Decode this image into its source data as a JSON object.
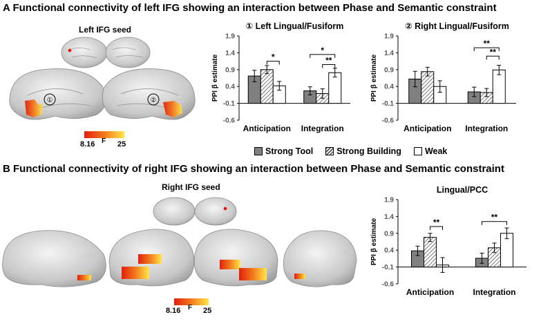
{
  "panel_a": {
    "letter": "A",
    "title": "Functional connectivity of left IFG showing an interaction between Phase and Semantic constraint",
    "seed_label": "Left IFG seed",
    "brain_markers": [
      "①",
      "②"
    ],
    "colorbar": {
      "min": "8.16",
      "stat": "F",
      "max": "25"
    }
  },
  "panel_b": {
    "letter": "B",
    "title": "Functional connectivity of right IFG showing an interaction between Phase and Semantic constraint",
    "seed_label": "Right IFG seed",
    "colorbar": {
      "min": "8.16",
      "stat": "F",
      "max": "25"
    }
  },
  "legend": {
    "items": [
      {
        "label": "Strong Tool",
        "fill": "gray"
      },
      {
        "label": "Strong Building",
        "fill": "hatch"
      },
      {
        "label": "Weak",
        "fill": "white"
      }
    ]
  },
  "colors": {
    "gray": "#808080",
    "hatch_line": "#555555",
    "white": "#ffffff",
    "heat_low": "#e0200f",
    "heat_high": "#ffe64a"
  },
  "chart_data": [
    {
      "id": "A1",
      "type": "bar",
      "title": "① Left Lingual/Fusiform",
      "ylabel": "PPI β estimate",
      "ylim": [
        -0.6,
        1.9
      ],
      "yticks": [
        "1.9",
        "1.4",
        "0.9",
        "0.4",
        "-0.1",
        "-0.6"
      ],
      "categories": [
        "Anticipation",
        "Integration"
      ],
      "series": [
        {
          "name": "Strong Tool",
          "values": [
            0.71,
            0.27
          ],
          "errors": [
            0.17,
            0.12
          ]
        },
        {
          "name": "Strong Building",
          "values": [
            0.9,
            0.19
          ],
          "errors": [
            0.12,
            0.14
          ]
        },
        {
          "name": "Weak",
          "values": [
            0.42,
            0.81
          ],
          "errors": [
            0.13,
            0.13
          ]
        }
      ],
      "significance": [
        {
          "label": "*",
          "from": [
            0,
            1
          ],
          "to": [
            0,
            2
          ],
          "y": 1.15
        },
        {
          "label": "*",
          "from": [
            1,
            0
          ],
          "to": [
            1,
            2
          ],
          "y": 1.35
        },
        {
          "label": "**",
          "from": [
            1,
            1
          ],
          "to": [
            1,
            2
          ],
          "y": 1.05
        }
      ]
    },
    {
      "id": "A2",
      "type": "bar",
      "title": "② Right Lingual/Fusiform",
      "ylabel": "PPI β estimate",
      "ylim": [
        -0.6,
        1.9
      ],
      "yticks": [
        "1.9",
        "1.4",
        "0.9",
        "0.4",
        "-0.1",
        "-0.6"
      ],
      "categories": [
        "Anticipation",
        "Integration"
      ],
      "series": [
        {
          "name": "Strong Tool",
          "values": [
            0.62,
            0.24
          ],
          "errors": [
            0.23,
            0.14
          ]
        },
        {
          "name": "Strong Building",
          "values": [
            0.84,
            0.22
          ],
          "errors": [
            0.13,
            0.12
          ]
        },
        {
          "name": "Weak",
          "values": [
            0.4,
            0.89
          ],
          "errors": [
            0.17,
            0.14
          ]
        }
      ],
      "significance": [
        {
          "label": "**",
          "from": [
            1,
            0
          ],
          "to": [
            1,
            2
          ],
          "y": 1.55
        },
        {
          "label": "**",
          "from": [
            1,
            1
          ],
          "to": [
            1,
            2
          ],
          "y": 1.3
        }
      ]
    },
    {
      "id": "B1",
      "type": "bar",
      "title": "Lingual/PCC",
      "ylabel": "PPI β estimate",
      "ylim": [
        -0.6,
        1.9
      ],
      "yticks": [
        "1.9",
        "1.4",
        "0.9",
        "0.4",
        "-0.1",
        "-0.6"
      ],
      "categories": [
        "Anticipation",
        "Integration"
      ],
      "series": [
        {
          "name": "Strong Tool",
          "values": [
            0.38,
            0.16
          ],
          "errors": [
            0.14,
            0.15
          ]
        },
        {
          "name": "Strong Building",
          "values": [
            0.78,
            0.47
          ],
          "errors": [
            0.12,
            0.14
          ]
        },
        {
          "name": "Weak",
          "values": [
            -0.04,
            0.9
          ],
          "errors": [
            0.22,
            0.16
          ]
        }
      ],
      "significance": [
        {
          "label": "**",
          "from": [
            0,
            1
          ],
          "to": [
            0,
            2
          ],
          "y": 1.1
        },
        {
          "label": "**",
          "from": [
            1,
            0
          ],
          "to": [
            1,
            2
          ],
          "y": 1.25
        }
      ]
    }
  ]
}
